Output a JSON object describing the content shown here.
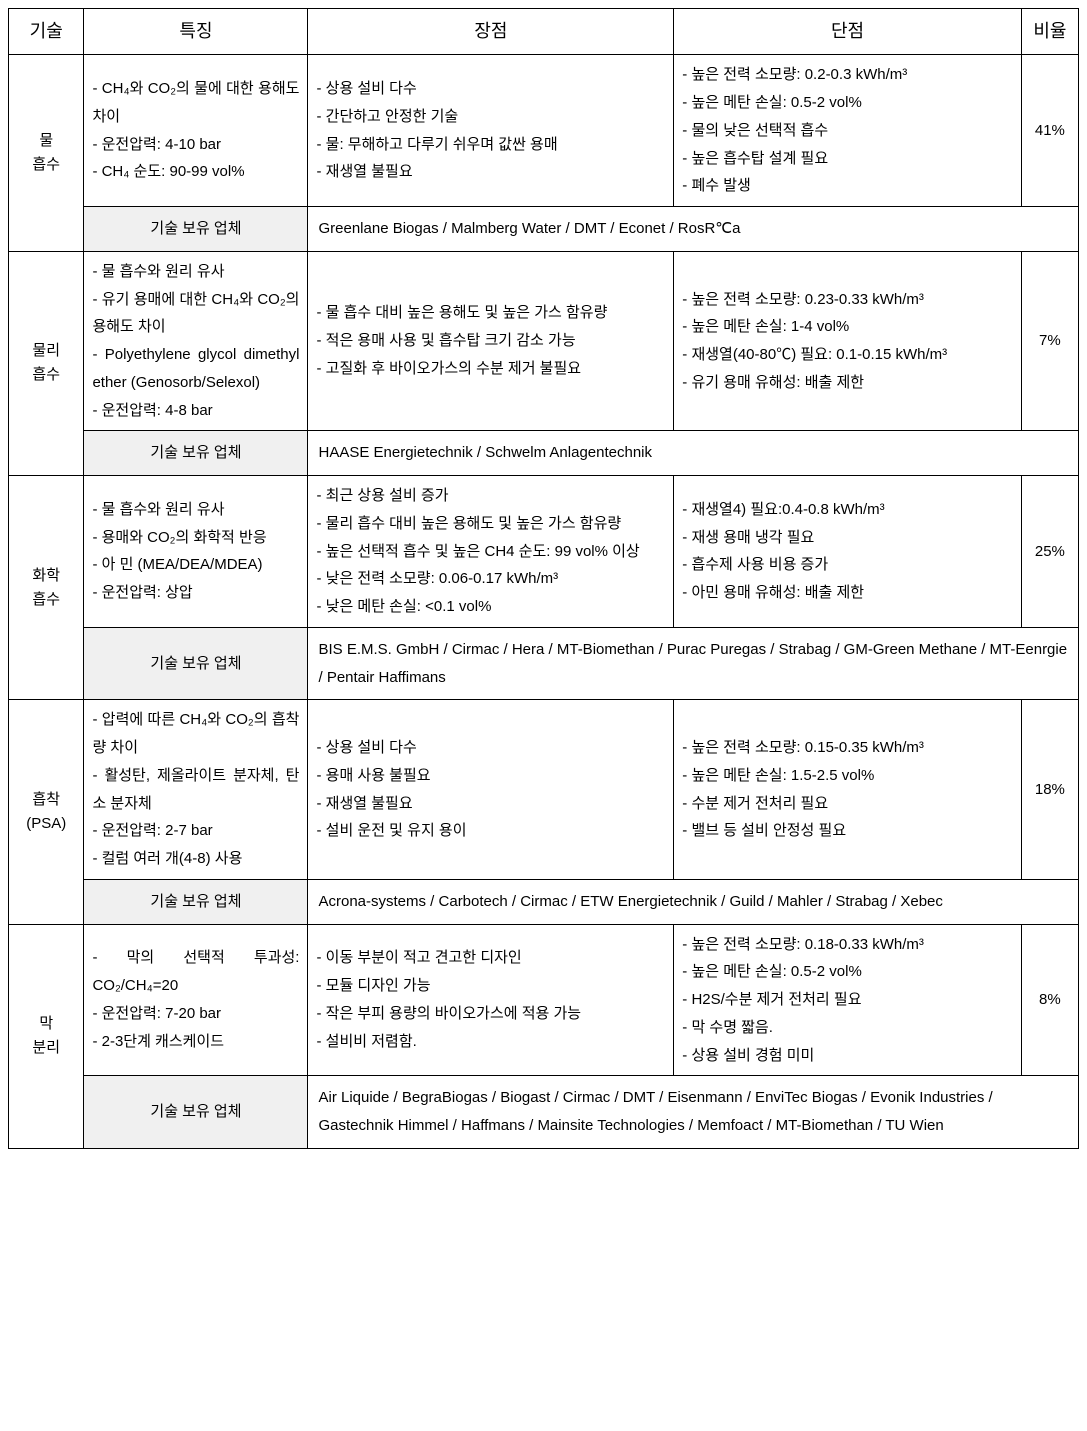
{
  "headers": {
    "tech": "기술",
    "features": "특징",
    "advantages": "장점",
    "disadvantages": "단점",
    "ratio": "비율"
  },
  "vendorLabel": "기술 보유 업체",
  "rows": [
    {
      "tech": "물\n흡수",
      "features": "- CH₄와 CO₂의 물에 대한 용해도 차이\n- 운전압력: 4-10 bar\n- CH₄ 순도: 90-99 vol%",
      "advantages": "- 상용 설비 다수\n- 간단하고 안정한 기술\n- 물: 무해하고 다루기 쉬우며 값싼 용매\n- 재생열 불필요",
      "disadvantages": "- 높은 전력 소모량: 0.2-0.3 kWh/m³\n- 높은 메탄 손실: 0.5-2 vol%\n- 물의 낮은 선택적 흡수\n- 높은 흡수탑 설계 필요\n- 폐수 발생",
      "ratio": "41%",
      "vendors": "Greenlane Biogas / Malmberg Water / DMT / Econet / RosR℃a"
    },
    {
      "tech": "물리\n흡수",
      "features": "- 물 흡수와 원리 유사\n- 유기 용매에 대한 CH₄와 CO₂의 용해도 차이\n- Polyethylene glycol dimethyl ether (Genosorb/Selexol)\n- 운전압력: 4-8 bar",
      "advantages": "- 물 흡수 대비 높은 용해도 및 높은 가스 함유량\n- 적은 용매 사용 및 흡수탑 크기 감소 가능\n- 고질화 후 바이오가스의 수분 제거 불필요",
      "disadvantages": "- 높은 전력 소모량: 0.23-0.33 kWh/m³\n- 높은 메탄 손실: 1-4 vol%\n- 재생열(40-80℃) 필요: 0.1-0.15 kWh/m³\n- 유기 용매 유해성: 배출 제한",
      "ratio": "7%",
      "vendors": "HAASE Energietechnik / Schwelm Anlagentechnik"
    },
    {
      "tech": "화학\n흡수",
      "features": "- 물 흡수와 원리 유사\n- 용매와 CO₂의 화학적 반응\n- 아                      민 (MEA/DEA/MDEA)\n- 운전압력: 상압",
      "advantages": "- 최근 상용 설비 증가\n- 물리 흡수 대비 높은 용해도 및 높은 가스 함유량\n- 높은 선택적 흡수 및 높은 CH4 순도: 99 vol% 이상\n- 낮은 전력 소모량: 0.06-0.17 kWh/m³\n- 낮은 메탄 손실: <0.1 vol%",
      "disadvantages": "- 재생열4) 필요:0.4-0.8 kWh/m³\n- 재생 용매 냉각 필요\n- 흡수제 사용 비용 증가\n- 아민 용매 유해성: 배출 제한",
      "ratio": "25%",
      "vendors": "BIS E.M.S. GmbH / Cirmac / Hera / MT-Biomethan / Purac Puregas / Strabag / GM-Green Methane / MT-Eenrgie / Pentair Haffimans"
    },
    {
      "tech": "흡착\n(PSA)",
      "features": "- 압력에 따른 CH₄와 CO₂의 흡착량 차이\n- 활성탄, 제올라이트 분자체, 탄소 분자체\n- 운전압력: 2-7 bar\n- 컬럼 여러 개(4-8) 사용",
      "advantages": "- 상용 설비 다수\n- 용매 사용 불필요\n- 재생열 불필요\n- 설비 운전 및 유지 용이",
      "disadvantages": "- 높은 전력 소모량: 0.15-0.35 kWh/m³\n- 높은 메탄 손실: 1.5-2.5 vol%\n- 수분 제거 전처리 필요\n- 밸브 등 설비 안정성 필요",
      "ratio": "18%",
      "vendors": "Acrona-systems / Carbotech / Cirmac / ETW Energietechnik / Guild / Mahler / Strabag / Xebec"
    },
    {
      "tech": "막\n분리",
      "features": "- 막의 선택적 투과성: CO₂/CH₄=20\n- 운전압력: 7-20 bar\n- 2-3단계 캐스케이드",
      "advantages": "- 이동 부분이 적고 견고한 디자인\n- 모듈 디자인 가능\n- 작은 부피 용량의 바이오가스에 적용 가능\n- 설비비 저렴함.",
      "disadvantages": "- 높은 전력 소모량: 0.18-0.33 kWh/m³\n- 높은 메탄 손실: 0.5-2 vol%\n- H2S/수분 제거 전처리 필요\n- 막 수명 짧음.\n- 상용 설비 경험 미미",
      "ratio": "8%",
      "vendors": "Air Liquide / BegraBiogas / Biogast / Cirmac / DMT / Eisenmann / EnviTec Biogas / Evonik Industries / Gastechnik Himmel / Haffmans / Mainsite Technologies / Memfoact / MT-Biomethan / TU Wien"
    }
  ]
}
